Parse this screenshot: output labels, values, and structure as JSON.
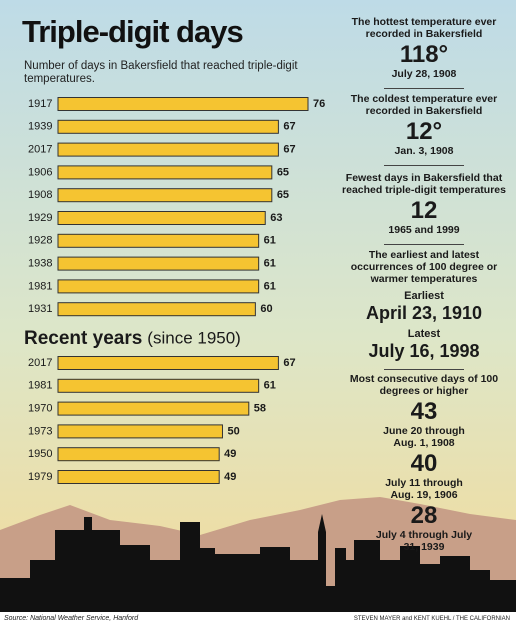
{
  "chart_data": [
    {
      "type": "bar",
      "title": "Triple-digit days",
      "subtitle": "Number of days in Bakersfield that reached triple-digit temperatures.",
      "categories": [
        "1917",
        "1939",
        "2017",
        "1906",
        "1908",
        "1929",
        "1928",
        "1938",
        "1981",
        "1931"
      ],
      "values": [
        76,
        67,
        67,
        65,
        65,
        63,
        61,
        61,
        61,
        60
      ],
      "color": "#f5c431"
    },
    {
      "type": "bar",
      "title": "Recent years",
      "subtitle": "(since 1950)",
      "categories": [
        "2017",
        "1981",
        "1970",
        "1973",
        "1950",
        "1979"
      ],
      "values": [
        67,
        61,
        58,
        50,
        49,
        49
      ],
      "color": "#f5c431"
    }
  ],
  "facts": {
    "hottest": {
      "heading": "The hottest temperature ever recorded in Bakersfield",
      "value": "118°",
      "detail": "July 28, 1908"
    },
    "coldest": {
      "heading": "The coldest temperature ever recorded in Bakersfield",
      "value": "12°",
      "detail": "Jan. 3, 1908"
    },
    "fewest": {
      "heading": "Fewest days in Bakersfield that reached triple-digit temperatures",
      "value": "12",
      "detail": "1965 and 1999"
    },
    "earliest_latest": {
      "heading": "The earliest and latest occurrences of 100 degree or warmer temperatures",
      "items": [
        {
          "label": "Earliest",
          "value": "April 23, 1910"
        },
        {
          "label": "Latest",
          "value": "July 16, 1998"
        }
      ]
    },
    "consecutive": {
      "heading": "Most consecutive days of 100 degrees or higher",
      "items": [
        {
          "value": "43",
          "detail": "June 20 through Aug. 1, 1908"
        },
        {
          "value": "40",
          "detail": "July 11 through Aug. 19, 1906"
        },
        {
          "value": "28",
          "detail": "July 4 through July 31, 1939"
        }
      ]
    }
  },
  "source": "Source: National Weather Service, Hanford",
  "credit": "STEVEN MAYER and KENT KUEHL / THE CALIFORNIAN"
}
